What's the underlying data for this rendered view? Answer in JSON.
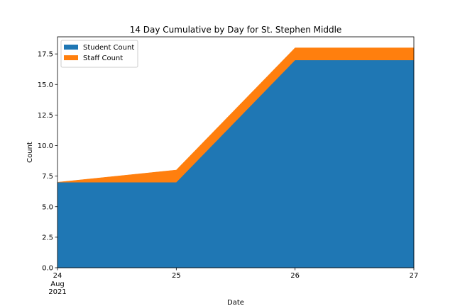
{
  "chart_data": {
    "type": "area",
    "stacked": true,
    "title": "14 Day Cumulative by Day for St. Stephen Middle",
    "xlabel": "Date",
    "ylabel": "Count",
    "x": [
      "2021-08-24",
      "2021-08-25",
      "2021-08-26",
      "2021-08-27"
    ],
    "x_tick_labels": [
      "24",
      "25",
      "26",
      "27"
    ],
    "x_tick_sublabels": [
      "Aug",
      "2021"
    ],
    "ylim": [
      0,
      18.9
    ],
    "y_ticks": [
      0.0,
      2.5,
      5.0,
      7.5,
      10.0,
      12.5,
      15.0,
      17.5
    ],
    "y_tick_labels": [
      "0.0",
      "2.5",
      "5.0",
      "7.5",
      "10.0",
      "12.5",
      "15.0",
      "17.5"
    ],
    "grid": false,
    "legend_position": "top-left",
    "series": [
      {
        "name": "Student Count",
        "color": "#1f77b4",
        "values": [
          7,
          7,
          17,
          17
        ]
      },
      {
        "name": "Staff Count",
        "color": "#ff7f0e",
        "values": [
          0,
          1,
          1,
          1
        ]
      }
    ]
  }
}
